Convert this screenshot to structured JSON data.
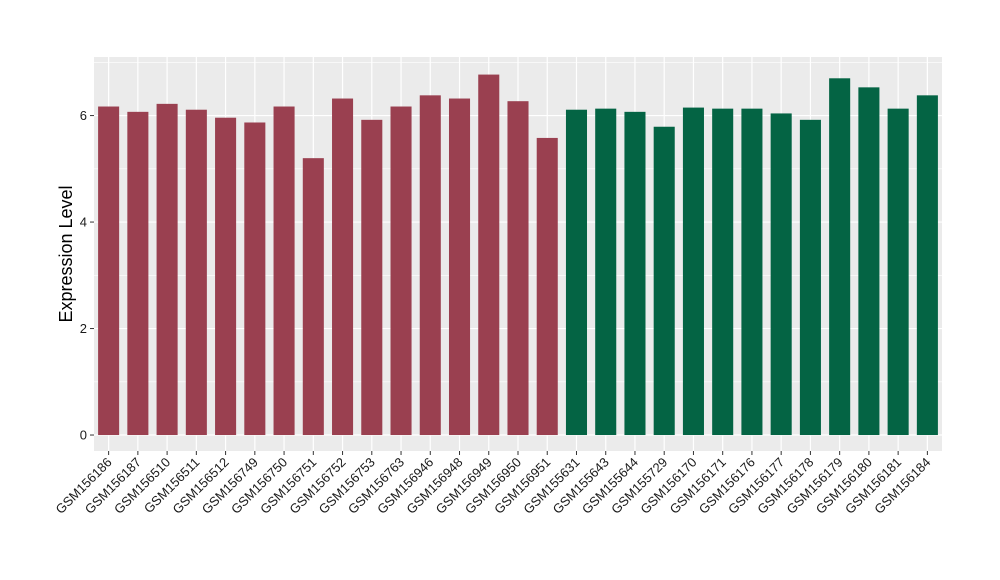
{
  "chart_data": {
    "type": "bar",
    "title": "",
    "xlabel": "",
    "ylabel": "Expression Level",
    "ylim": [
      -0.3,
      7.1
    ],
    "yticks": [
      0,
      2,
      4,
      6
    ],
    "grid": true,
    "legend": "none",
    "categories": [
      "GSM156186",
      "GSM156187",
      "GSM156510",
      "GSM156511",
      "GSM156512",
      "GSM156749",
      "GSM156750",
      "GSM156751",
      "GSM156752",
      "GSM156753",
      "GSM156763",
      "GSM156946",
      "GSM156948",
      "GSM156949",
      "GSM156950",
      "GSM156951",
      "GSM155631",
      "GSM155643",
      "GSM155644",
      "GSM155729",
      "GSM156170",
      "GSM156171",
      "GSM156176",
      "GSM156177",
      "GSM156178",
      "GSM156179",
      "GSM156180",
      "GSM156181",
      "GSM156184"
    ],
    "values": [
      6.17,
      6.07,
      6.22,
      6.11,
      5.96,
      5.87,
      6.17,
      5.2,
      6.32,
      5.92,
      6.17,
      6.38,
      6.32,
      6.77,
      6.27,
      5.58,
      6.11,
      6.13,
      6.07,
      5.79,
      6.15,
      6.13,
      6.13,
      6.04,
      5.92,
      6.7,
      6.53,
      6.13,
      6.38
    ],
    "group_sizes": [
      16,
      13
    ],
    "colors": {
      "group_1": "#9a4050",
      "group_2": "#046444",
      "panel": "#ebebeb",
      "grid": "#ffffff"
    }
  }
}
